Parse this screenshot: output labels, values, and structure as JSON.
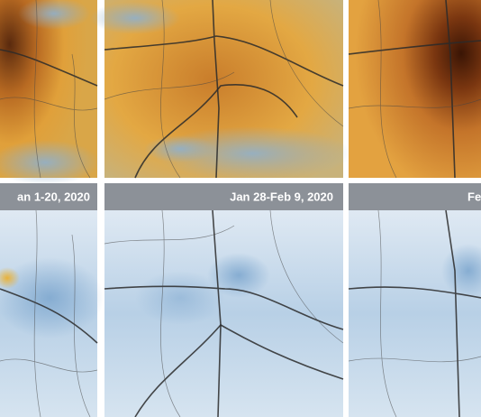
{
  "panels": [
    {
      "label": "an 1-20, 2020"
    },
    {
      "label": "Jan 28-Feb 9, 2020"
    },
    {
      "label": "Fe"
    }
  ]
}
